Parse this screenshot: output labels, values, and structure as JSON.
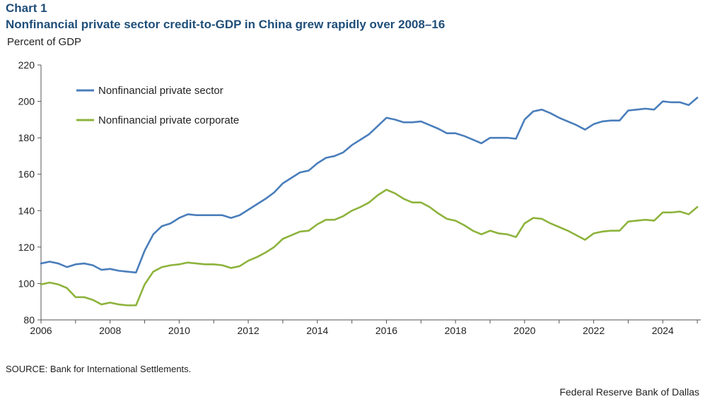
{
  "header": {
    "label": "Chart 1",
    "title": "Nonfinancial private sector credit-to-GDP in China grew rapidly over 2008–16",
    "y_unit": "Percent of GDP"
  },
  "footer": {
    "source": "SOURCE: Bank for International Settlements.",
    "credit": "Federal Reserve Bank of Dallas"
  },
  "colors": {
    "series1": "#4a7ebb",
    "series2": "#8db33c",
    "axis": "#555555",
    "title": "#1f4e79"
  },
  "chart_data": {
    "type": "line",
    "title": "Nonfinancial private sector credit-to-GDP in China grew rapidly over 2008–16",
    "xlabel": "",
    "ylabel": "Percent of GDP",
    "xlim": [
      2006,
      2025.1
    ],
    "ylim": [
      80,
      220
    ],
    "yticks": [
      80,
      100,
      120,
      140,
      160,
      180,
      200,
      220
    ],
    "xticks": [
      2006,
      2008,
      2010,
      2012,
      2014,
      2016,
      2018,
      2020,
      2022,
      2024
    ],
    "grid": false,
    "legend_position": "top-left",
    "x": [
      2006.0,
      2006.25,
      2006.5,
      2006.75,
      2007.0,
      2007.25,
      2007.5,
      2007.75,
      2008.0,
      2008.25,
      2008.5,
      2008.75,
      2009.0,
      2009.25,
      2009.5,
      2009.75,
      2010.0,
      2010.25,
      2010.5,
      2010.75,
      2011.0,
      2011.25,
      2011.5,
      2011.75,
      2012.0,
      2012.25,
      2012.5,
      2012.75,
      2013.0,
      2013.25,
      2013.5,
      2013.75,
      2014.0,
      2014.25,
      2014.5,
      2014.75,
      2015.0,
      2015.25,
      2015.5,
      2015.75,
      2016.0,
      2016.25,
      2016.5,
      2016.75,
      2017.0,
      2017.25,
      2017.5,
      2017.75,
      2018.0,
      2018.25,
      2018.5,
      2018.75,
      2019.0,
      2019.25,
      2019.5,
      2019.75,
      2020.0,
      2020.25,
      2020.5,
      2020.75,
      2021.0,
      2021.25,
      2021.5,
      2021.75,
      2022.0,
      2022.25,
      2022.5,
      2022.75,
      2023.0,
      2023.25,
      2023.5,
      2023.75,
      2024.0,
      2024.25,
      2024.5,
      2024.75,
      2025.0
    ],
    "series": [
      {
        "name": "Nonfinancial private sector",
        "color": "#4a7ebb",
        "values": [
          111,
          112,
          111,
          109,
          110.5,
          111,
          110,
          107.5,
          108,
          107,
          106.5,
          106,
          118,
          127,
          131.5,
          133,
          136,
          138,
          137.5,
          137.5,
          137.5,
          137.5,
          136,
          137.5,
          140.5,
          143.5,
          146.5,
          150,
          155,
          158,
          161,
          162,
          166,
          169,
          170,
          172,
          176,
          179,
          182,
          186.5,
          191,
          190,
          188.5,
          188.5,
          189,
          187,
          185,
          182.5,
          182.5,
          181,
          179,
          177,
          180,
          180,
          180,
          179.5,
          190,
          194.5,
          195.5,
          193.5,
          191,
          189,
          187,
          184.5,
          187.5,
          189,
          189.5,
          189.5,
          195,
          195.5,
          196,
          195.5,
          200,
          199.5,
          199.5,
          198,
          202
        ]
      },
      {
        "name": "Nonfinancial private corporate",
        "color": "#8db33c",
        "values": [
          99.5,
          100.5,
          99.5,
          97.5,
          92.5,
          92.5,
          91,
          88.5,
          89.5,
          88.5,
          88,
          88,
          99.5,
          106.5,
          109,
          110,
          110.5,
          111.5,
          111,
          110.5,
          110.5,
          110,
          108.5,
          109.5,
          112.5,
          114.5,
          117,
          120,
          124.5,
          126.5,
          128.5,
          129,
          132.5,
          135,
          135,
          137,
          140,
          142,
          144.5,
          148.5,
          151.5,
          149.5,
          146.5,
          144.5,
          144.5,
          142,
          138.5,
          135.5,
          134.5,
          132,
          129,
          127,
          129,
          127.5,
          127,
          125.5,
          133,
          136,
          135.5,
          133,
          131,
          129,
          126.5,
          124,
          127.5,
          128.5,
          129,
          129,
          134,
          134.5,
          135,
          134.5,
          139,
          139,
          139.5,
          138,
          142
        ]
      }
    ]
  }
}
